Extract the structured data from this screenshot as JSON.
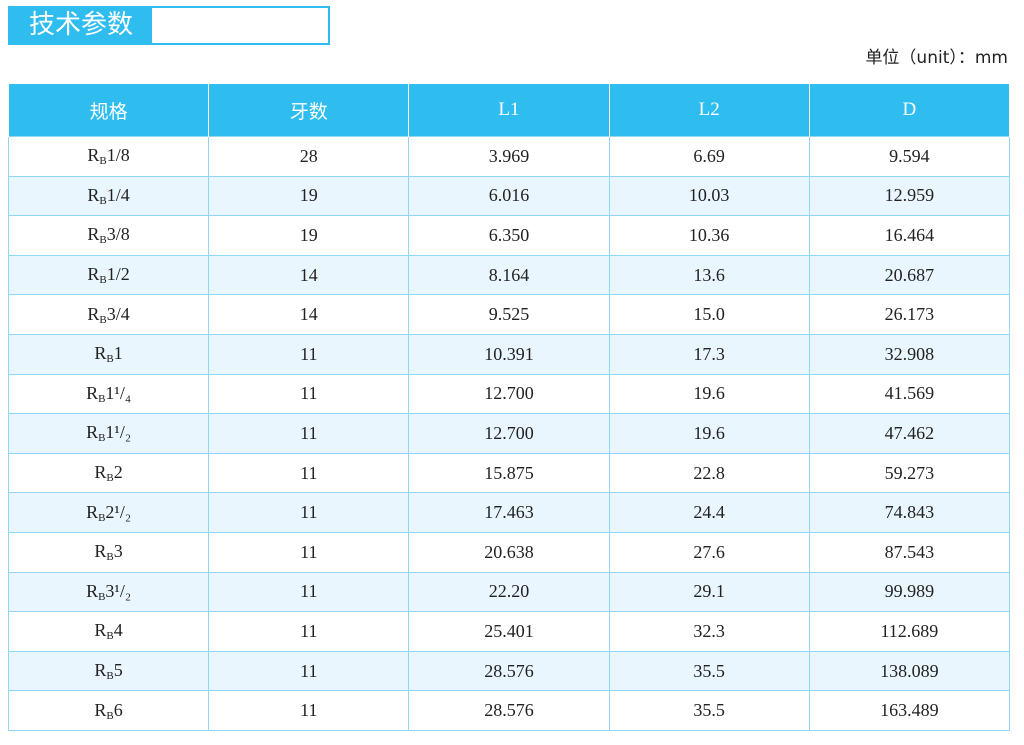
{
  "header": {
    "title": "技术参数",
    "unit": "单位（unit）：mm"
  },
  "table": {
    "columns": [
      "规格",
      "牙数",
      "L1",
      "L2",
      "D"
    ],
    "rows": [
      {
        "spec": {
          "main": "R",
          "sub": "B",
          "size": "1/8"
        },
        "cells": [
          "28",
          "3.969",
          "6.69",
          "9.594"
        ]
      },
      {
        "spec": {
          "main": "R",
          "sub": "B",
          "size": "1/4"
        },
        "cells": [
          "19",
          "6.016",
          "10.03",
          "12.959"
        ]
      },
      {
        "spec": {
          "main": "R",
          "sub": "B",
          "size": "3/8"
        },
        "cells": [
          "19",
          "6.350",
          "10.36",
          "16.464"
        ]
      },
      {
        "spec": {
          "main": "R",
          "sub": "B",
          "size": "1/2"
        },
        "cells": [
          "14",
          "8.164",
          "13.6",
          "20.687"
        ]
      },
      {
        "spec": {
          "main": "R",
          "sub": "B",
          "size": "3/4"
        },
        "cells": [
          "14",
          "9.525",
          "15.0",
          "26.173"
        ]
      },
      {
        "spec": {
          "main": "R",
          "sub": "B",
          "size": "1"
        },
        "cells": [
          "11",
          "10.391",
          "17.3",
          "32.908"
        ]
      },
      {
        "spec": {
          "main": "R",
          "sub": "B",
          "size": "1¹/₄"
        },
        "cells": [
          "11",
          "12.700",
          "19.6",
          "41.569"
        ]
      },
      {
        "spec": {
          "main": "R",
          "sub": "B",
          "size": "1¹/₂"
        },
        "cells": [
          "11",
          "12.700",
          "19.6",
          "47.462"
        ]
      },
      {
        "spec": {
          "main": "R",
          "sub": "B",
          "size": "2"
        },
        "cells": [
          "11",
          "15.875",
          "22.8",
          "59.273"
        ]
      },
      {
        "spec": {
          "main": "R",
          "sub": "B",
          "size": "2¹/₂"
        },
        "cells": [
          "11",
          "17.463",
          "24.4",
          "74.843"
        ]
      },
      {
        "spec": {
          "main": "R",
          "sub": "B",
          "size": "3"
        },
        "cells": [
          "11",
          "20.638",
          "27.6",
          "87.543"
        ]
      },
      {
        "spec": {
          "main": "R",
          "sub": "B",
          "size": "3¹/₂"
        },
        "cells": [
          "11",
          "22.20",
          "29.1",
          "99.989"
        ]
      },
      {
        "spec": {
          "main": "R",
          "sub": "B",
          "size": "4"
        },
        "cells": [
          "11",
          "25.401",
          "32.3",
          "112.689"
        ]
      },
      {
        "spec": {
          "main": "R",
          "sub": "B",
          "size": "5"
        },
        "cells": [
          "11",
          "28.576",
          "35.5",
          "138.089"
        ]
      },
      {
        "spec": {
          "main": "R",
          "sub": "B",
          "size": "6"
        },
        "cells": [
          "11",
          "28.576",
          "35.5",
          "163.489"
        ]
      }
    ]
  }
}
